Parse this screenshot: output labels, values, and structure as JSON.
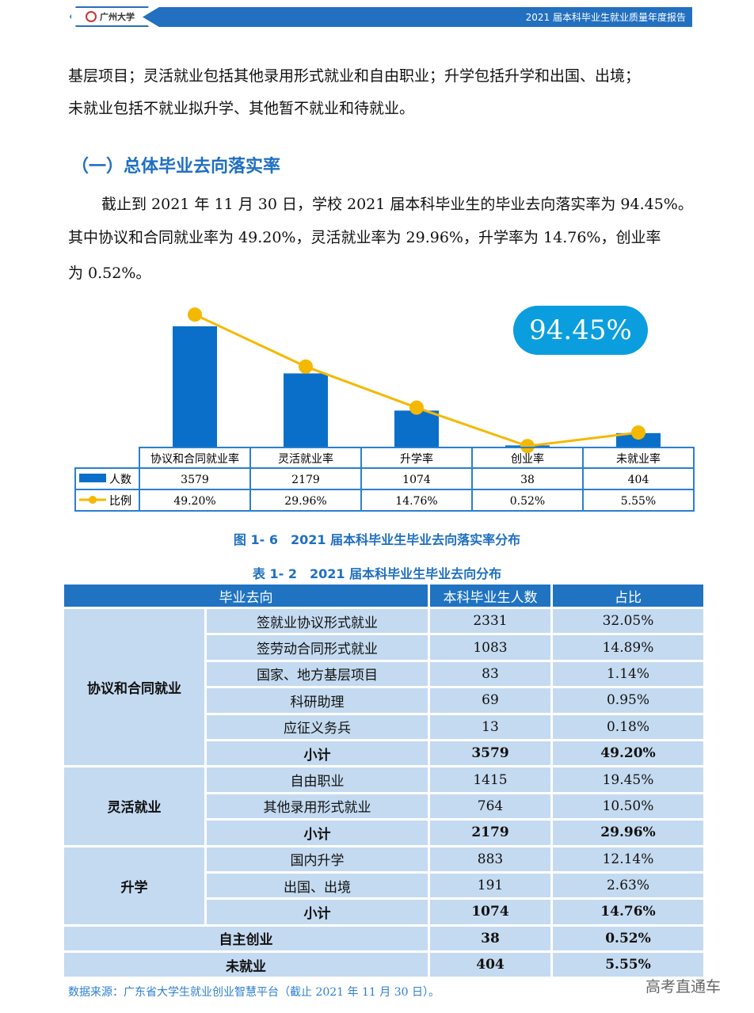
{
  "header": {
    "logo_text": "广州大学",
    "title": "2021 届本科毕业生就业质量年度报告"
  },
  "body": {
    "para1_line1": "基层项目；灵活就业包括其他录用形式就业和自由职业；升学包括升学和出国、出境；",
    "para1_line2": "未就业包括不就业拟升学、其他暂不就业和待就业。",
    "heading": "（一）总体毕业去向落实率",
    "para2_line1": "截止到 2021 年 11 月 30 日，学校 2021 届本科毕业生的毕业去向落实率为 94.45%。",
    "para2_line2": "其中协议和合同就业率为 49.20%，灵活就业率为 29.96%，升学率为 14.76%，创业率",
    "para2_line3": "为 0.52%。"
  },
  "chart_data": {
    "type": "bar+line",
    "badge": "94.45%",
    "categories": [
      "协议和合同就业率",
      "灵活就业率",
      "升学率",
      "创业率",
      "未就业率"
    ],
    "series": [
      {
        "name": "人数",
        "type": "bar",
        "color": "#0a6fc9",
        "values": [
          3579,
          2179,
          1074,
          38,
          404
        ],
        "labels": [
          "3579",
          "2179",
          "1074",
          "38",
          "404"
        ]
      },
      {
        "name": "比例",
        "type": "line",
        "color": "#f5b800",
        "values": [
          49.2,
          29.96,
          14.76,
          0.52,
          5.55
        ],
        "labels": [
          "49.20%",
          "29.96%",
          "14.76%",
          "0.52%",
          "5.55%"
        ]
      }
    ],
    "caption": "图 1- 6　2021 届本科毕业生毕业去向落实率分布"
  },
  "table": {
    "caption": "表 1- 2　2021 届本科毕业生毕业去向分布",
    "headers": [
      "毕业去向",
      "本科毕业生人数",
      "占比"
    ],
    "groups": [
      {
        "name": "协议和合同就业",
        "rows": [
          [
            "签就业协议形式就业",
            "2331",
            "32.05%"
          ],
          [
            "签劳动合同形式就业",
            "1083",
            "14.89%"
          ],
          [
            "国家、地方基层项目",
            "83",
            "1.14%"
          ],
          [
            "科研助理",
            "69",
            "0.95%"
          ],
          [
            "应征义务兵",
            "13",
            "0.18%"
          ]
        ],
        "subtotal": [
          "小计",
          "3579",
          "49.20%"
        ]
      },
      {
        "name": "灵活就业",
        "rows": [
          [
            "自由职业",
            "1415",
            "19.45%"
          ],
          [
            "其他录用形式就业",
            "764",
            "10.50%"
          ]
        ],
        "subtotal": [
          "小计",
          "2179",
          "29.96%"
        ]
      },
      {
        "name": "升学",
        "rows": [
          [
            "国内升学",
            "883",
            "12.14%"
          ],
          [
            "出国、出境",
            "191",
            "2.63%"
          ]
        ],
        "subtotal": [
          "小计",
          "1074",
          "14.76%"
        ]
      }
    ],
    "singles": [
      [
        "自主创业",
        "38",
        "0.52%"
      ],
      [
        "未就业",
        "404",
        "5.55%"
      ]
    ],
    "source": "数据来源：广东省大学生就业创业智慧平台（截止 2021 年 11 月 30 日）。"
  },
  "watermark": "高考直通车"
}
